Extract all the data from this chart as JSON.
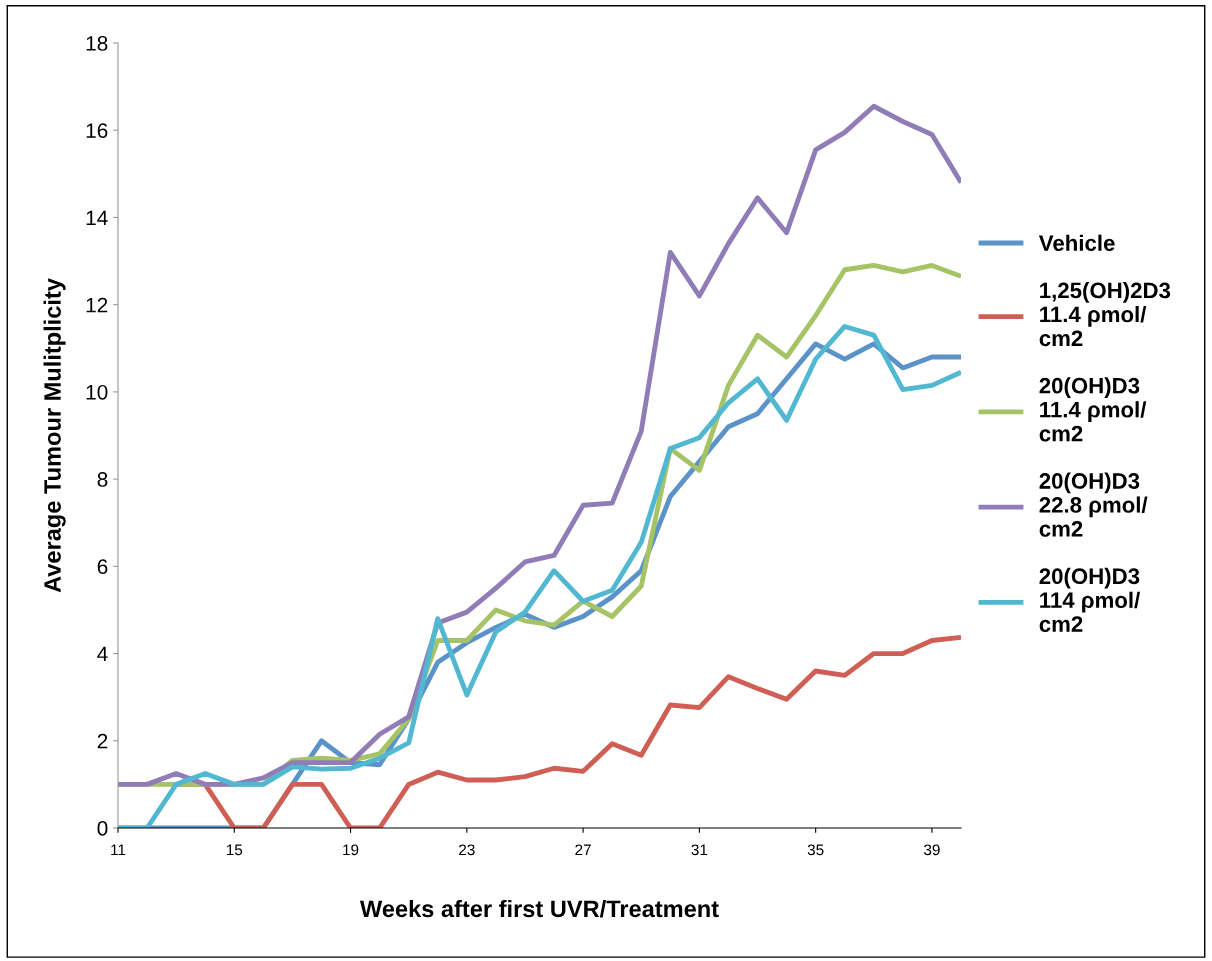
{
  "chart_data": {
    "type": "line",
    "xlabel": "Weeks after first UVR/Treatment",
    "ylabel": "Average Tumour Mulitplicity",
    "x": [
      11,
      12,
      13,
      14,
      15,
      16,
      17,
      18,
      19,
      20,
      21,
      22,
      23,
      24,
      25,
      26,
      27,
      28,
      29,
      30,
      31,
      32,
      33,
      34,
      35,
      36,
      37,
      38,
      39,
      40
    ],
    "xlim": [
      11,
      40
    ],
    "xticks": [
      11,
      15,
      19,
      23,
      27,
      31,
      35,
      39
    ],
    "ylim": [
      0,
      18
    ],
    "yticks": [
      0,
      2,
      4,
      6,
      8,
      10,
      12,
      14,
      16,
      18
    ],
    "grid": false,
    "legend": "right",
    "marker": "none",
    "line_style": "solid",
    "series": [
      {
        "name": "Vehicle",
        "color": "#5b93c9",
        "values": [
          0,
          0,
          0,
          0,
          0,
          0,
          1,
          2,
          1.5,
          1.45,
          2.5,
          3.8,
          4.25,
          4.6,
          4.9,
          4.6,
          4.85,
          5.3,
          5.9,
          7.6,
          8.4,
          9.2,
          9.5,
          10.3,
          11.1,
          10.75,
          11.1,
          10.55,
          10.8,
          10.8
        ]
      },
      {
        "name": "1,25(OH)2D3\n11.4 ρmol/\ncm2",
        "color": "#cf5f55",
        "values": [
          null,
          null,
          1,
          1,
          0,
          0,
          1,
          1,
          0,
          0,
          1,
          1.28,
          1.1,
          1.1,
          1.18,
          1.37,
          1.3,
          1.93,
          1.67,
          2.82,
          2.76,
          3.47,
          3.2,
          2.95,
          3.6,
          3.5,
          4,
          4,
          4.3,
          4.37
        ]
      },
      {
        "name": "20(OH)D3\n11.4 ρmol/\ncm2",
        "color": "#a6c366",
        "values": [
          1,
          1,
          1,
          1,
          1,
          1,
          1.55,
          1.6,
          1.55,
          1.7,
          2.5,
          4.3,
          4.3,
          5,
          4.75,
          4.65,
          5.2,
          4.85,
          5.55,
          8.7,
          8.2,
          10.15,
          11.3,
          10.8,
          11.75,
          12.8,
          12.9,
          12.75,
          12.9,
          12.65
        ]
      },
      {
        "name": "20(OH)D3\n22.8 ρmol/\ncm2",
        "color": "#907cb6",
        "values": [
          1,
          1,
          1.25,
          1,
          1,
          1.15,
          1.5,
          1.5,
          1.5,
          2.15,
          2.55,
          4.7,
          4.95,
          5.5,
          6.1,
          6.25,
          7.4,
          7.45,
          9.1,
          13.2,
          12.2,
          13.4,
          14.45,
          13.65,
          15.55,
          15.95,
          16.55,
          16.2,
          15.9,
          14.8
        ]
      },
      {
        "name": "20(OH)D3\n114 ρmol/\ncm2",
        "color": "#52b8d2",
        "values": [
          0,
          0,
          1,
          1.25,
          1,
          1,
          1.4,
          1.35,
          1.37,
          1.6,
          1.95,
          4.8,
          3.05,
          4.5,
          4.95,
          5.9,
          5.2,
          5.45,
          6.55,
          8.7,
          8.95,
          9.75,
          10.3,
          9.35,
          10.75,
          11.5,
          11.3,
          10.05,
          10.15,
          10.45
        ]
      }
    ]
  }
}
